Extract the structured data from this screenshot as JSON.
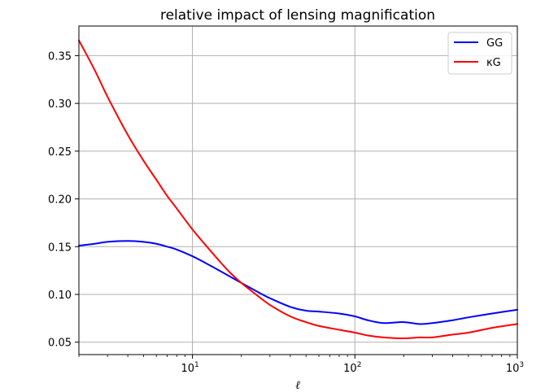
{
  "chart_data": {
    "type": "line",
    "title": "relative impact of lensing magnification",
    "xlabel": "ℓ",
    "ylabel": "",
    "xscale": "log",
    "xlim": [
      2,
      1000
    ],
    "ylim": [
      0.037,
      0.381
    ],
    "grid": true,
    "legend_position": "top-right",
    "x_ticks": [
      {
        "value": 10,
        "base": "10",
        "exp": "1"
      },
      {
        "value": 100,
        "base": "10",
        "exp": "2"
      },
      {
        "value": 1000,
        "base": "10",
        "exp": "3"
      }
    ],
    "y_ticks": [
      {
        "value": 0.05,
        "label": "0.05"
      },
      {
        "value": 0.1,
        "label": "0.10"
      },
      {
        "value": 0.15,
        "label": "0.15"
      },
      {
        "value": 0.2,
        "label": "0.20"
      },
      {
        "value": 0.25,
        "label": "0.25"
      },
      {
        "value": 0.3,
        "label": "0.30"
      },
      {
        "value": 0.35,
        "label": "0.35"
      }
    ],
    "series": [
      {
        "name": "GG",
        "color": "#0000ff",
        "x": [
          2,
          2.5,
          3,
          4,
          5,
          6,
          7,
          8,
          10,
          12,
          15,
          20,
          25,
          30,
          40,
          50,
          60,
          80,
          100,
          120,
          150,
          200,
          250,
          300,
          400,
          500,
          700,
          1000
        ],
        "y": [
          0.151,
          0.153,
          0.155,
          0.156,
          0.155,
          0.153,
          0.15,
          0.147,
          0.14,
          0.133,
          0.124,
          0.112,
          0.103,
          0.096,
          0.087,
          0.083,
          0.082,
          0.08,
          0.077,
          0.073,
          0.07,
          0.071,
          0.069,
          0.07,
          0.073,
          0.076,
          0.08,
          0.084
        ]
      },
      {
        "name": "κG",
        "color": "#ff0000",
        "x": [
          2,
          2.5,
          3,
          4,
          5,
          6,
          7,
          8,
          10,
          12,
          15,
          17,
          20,
          25,
          30,
          40,
          50,
          60,
          80,
          100,
          120,
          150,
          200,
          250,
          300,
          400,
          500,
          700,
          1000
        ],
        "y": [
          0.366,
          0.335,
          0.307,
          0.267,
          0.24,
          0.22,
          0.203,
          0.19,
          0.168,
          0.152,
          0.133,
          0.123,
          0.112,
          0.099,
          0.089,
          0.077,
          0.071,
          0.067,
          0.063,
          0.06,
          0.057,
          0.055,
          0.054,
          0.055,
          0.055,
          0.058,
          0.06,
          0.065,
          0.069
        ]
      }
    ]
  }
}
